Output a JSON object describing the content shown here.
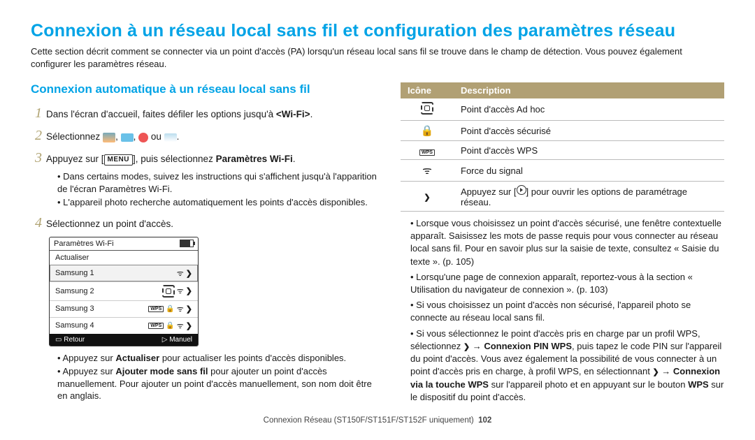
{
  "title": "Connexion à un réseau local sans fil et configuration des paramètres réseau",
  "intro": "Cette section décrit comment se connecter via un point d'accès (PA) lorsqu'un réseau local sans fil se trouve dans le champ de détection. Vous pouvez également configurer les paramètres réseau.",
  "subtitle": "Connexion automatique à un réseau local sans fil",
  "steps": {
    "s1": {
      "n": "1",
      "txt_a": "Dans l'écran d'accueil, faites défiler les options jusqu'à ",
      "txt_b": "<Wi-Fi>",
      "txt_c": "."
    },
    "s2": {
      "n": "2",
      "txt_a": "Sélectionnez ",
      "txt_b": " ou ",
      "txt_c": "."
    },
    "s3": {
      "n": "3",
      "txt_a": "Appuyez sur [",
      "key": "MENU",
      "txt_b": "], puis sélectionnez ",
      "bold": "Paramètres Wi-Fi",
      "txt_c": "."
    },
    "s3_b1": "Dans certains modes, suivez les instructions qui s'affichent jusqu'à l'apparition de l'écran Paramètres Wi-Fi.",
    "s3_b2": "L'appareil photo recherche automatiquement les points d'accès disponibles.",
    "s4": {
      "n": "4",
      "txt": "Sélectionnez un point d'accès."
    }
  },
  "ui": {
    "title": "Paramètres Wi-Fi",
    "rows": [
      "Actualiser",
      "Samsung 1",
      "Samsung 2",
      "Samsung 3",
      "Samsung 4"
    ],
    "foot_left": "Retour",
    "foot_right": "Manuel"
  },
  "bullets_left": {
    "b1_a": "Appuyez sur ",
    "b1_bold": "Actualiser",
    "b1_b": " pour actualiser les points d'accès disponibles.",
    "b2_a": "Appuyez sur ",
    "b2_bold": "Ajouter mode sans fil",
    "b2_b": " pour ajouter un point d'accès manuellement. Pour ajouter un point d'accès manuellement, son nom doit être en anglais."
  },
  "table": {
    "h1": "Icône",
    "h2": "Description",
    "r1": "Point d'accès Ad hoc",
    "r2": "Point d'accès sécurisé",
    "r3": "Point d'accès WPS",
    "r4": "Force du signal",
    "r5_a": "Appuyez sur [",
    "r5_b": "] pour ouvrir les options de paramétrage réseau."
  },
  "bullets_right": {
    "b1": "Lorsque vous choisissez un point d'accès sécurisé, une fenêtre contextuelle apparaît. Saisissez les mots de passe requis pour vous connecter au réseau local sans fil. Pour en savoir plus sur la saisie de texte, consultez « Saisie du texte ». (p. 105)",
    "b2": "Lorsqu'une page de connexion apparaît, reportez-vous à la section « Utilisation du navigateur de connexion ». (p. 103)",
    "b3": "Si vous choisissez un point d'accès non sécurisé, l'appareil photo se connecte au réseau local sans fil.",
    "b4_a": "Si vous sélectionnez le point d'accès pris en charge par un profil WPS, sélectionnez ",
    "b4_b": " → ",
    "b4_bold1": "Connexion PIN WPS",
    "b4_c": ", puis tapez le code PIN sur l'appareil du point d'accès. Vous avez également la possibilité de vous connecter à un point d'accès pris en charge, à profil WPS, en sélectionnant ",
    "b4_d": " → ",
    "b4_bold2": "Connexion via la touche WPS",
    "b4_e": " sur l'appareil photo et en appuyant sur le bouton ",
    "b4_bold3": "WPS",
    "b4_f": " sur le dispositif du point d'accès."
  },
  "footer": {
    "txt": "Connexion Réseau (ST150F/ST151F/ST152F uniquement)",
    "page": "102"
  }
}
